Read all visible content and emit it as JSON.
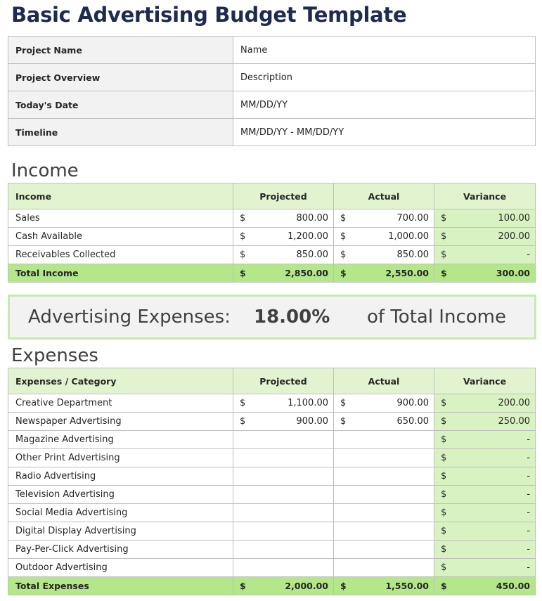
{
  "title": "Basic Advertising Budget Template",
  "project": [
    {
      "label": "Project Name",
      "value": "Name"
    },
    {
      "label": "Project Overview",
      "value": "Description"
    },
    {
      "label": "Today's Date",
      "value": "MM/DD/YY"
    },
    {
      "label": "Timeline",
      "value": "MM/DD/YY - MM/DD/YY"
    }
  ],
  "income": {
    "heading": "Income",
    "columns": [
      "Income",
      "Projected",
      "Actual",
      "Variance"
    ],
    "currency": "$",
    "rows": [
      {
        "name": "Sales",
        "projected": "800.00",
        "actual": "700.00",
        "variance": "100.00"
      },
      {
        "name": "Cash Available",
        "projected": "1,200.00",
        "actual": "1,000.00",
        "variance": "200.00"
      },
      {
        "name": "Receivables Collected",
        "projected": "850.00",
        "actual": "850.00",
        "variance": "-"
      }
    ],
    "total": {
      "name": "Total Income",
      "projected": "2,850.00",
      "actual": "2,550.00",
      "variance": "300.00"
    }
  },
  "banner": {
    "label": "Advertising Expenses:",
    "percent": "18.00%",
    "suffix": "of Total Income"
  },
  "expenses": {
    "heading": "Expenses",
    "columns": [
      "Expenses / Category",
      "Projected",
      "Actual",
      "Variance"
    ],
    "currency": "$",
    "rows": [
      {
        "name": "Creative Department",
        "projected": "1,100.00",
        "actual": "900.00",
        "variance": "200.00"
      },
      {
        "name": "Newspaper Advertising",
        "projected": "900.00",
        "actual": "650.00",
        "variance": "250.00"
      },
      {
        "name": "Magazine Advertising",
        "projected": "",
        "actual": "",
        "variance": "-"
      },
      {
        "name": "Other Print Advertising",
        "projected": "",
        "actual": "",
        "variance": "-"
      },
      {
        "name": "Radio Advertising",
        "projected": "",
        "actual": "",
        "variance": "-"
      },
      {
        "name": "Television Advertising",
        "projected": "",
        "actual": "",
        "variance": "-"
      },
      {
        "name": "Social Media Advertising",
        "projected": "",
        "actual": "",
        "variance": "-"
      },
      {
        "name": "Digital Display Advertising",
        "projected": "",
        "actual": "",
        "variance": "-"
      },
      {
        "name": "Pay-Per-Click Advertising",
        "projected": "",
        "actual": "",
        "variance": "-"
      },
      {
        "name": "Outdoor Advertising",
        "projected": "",
        "actual": "",
        "variance": "-"
      }
    ],
    "total": {
      "name": "Total Expenses",
      "projected": "2,000.00",
      "actual": "1,550.00",
      "variance": "450.00"
    }
  },
  "colors": {
    "title": "#1f2a50",
    "header_green": "#e2f4cf",
    "variance_green": "#d9f2c2",
    "total_green": "#b4e68a",
    "banner_border": "#c6eab0"
  }
}
